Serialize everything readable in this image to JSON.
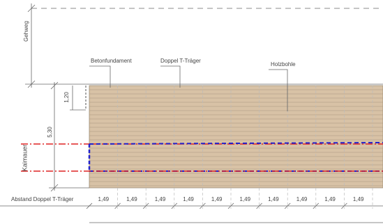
{
  "labels": {
    "walkway": "Gehweg",
    "foundation": "Betonfundament",
    "beam": "Doppel T-Träger",
    "plank": "Holzbohle",
    "quay_wall": "Kaimauer",
    "beam_spacing": "Abstand Doppel T-Träger"
  },
  "dimensions": {
    "edge": "1,20",
    "width": "5,30",
    "spacings": [
      "1,49",
      "1,49",
      "1,49",
      "1,49",
      "1,49",
      "1,49",
      "1,49",
      "1,49",
      "1,49",
      "1,49"
    ]
  }
}
